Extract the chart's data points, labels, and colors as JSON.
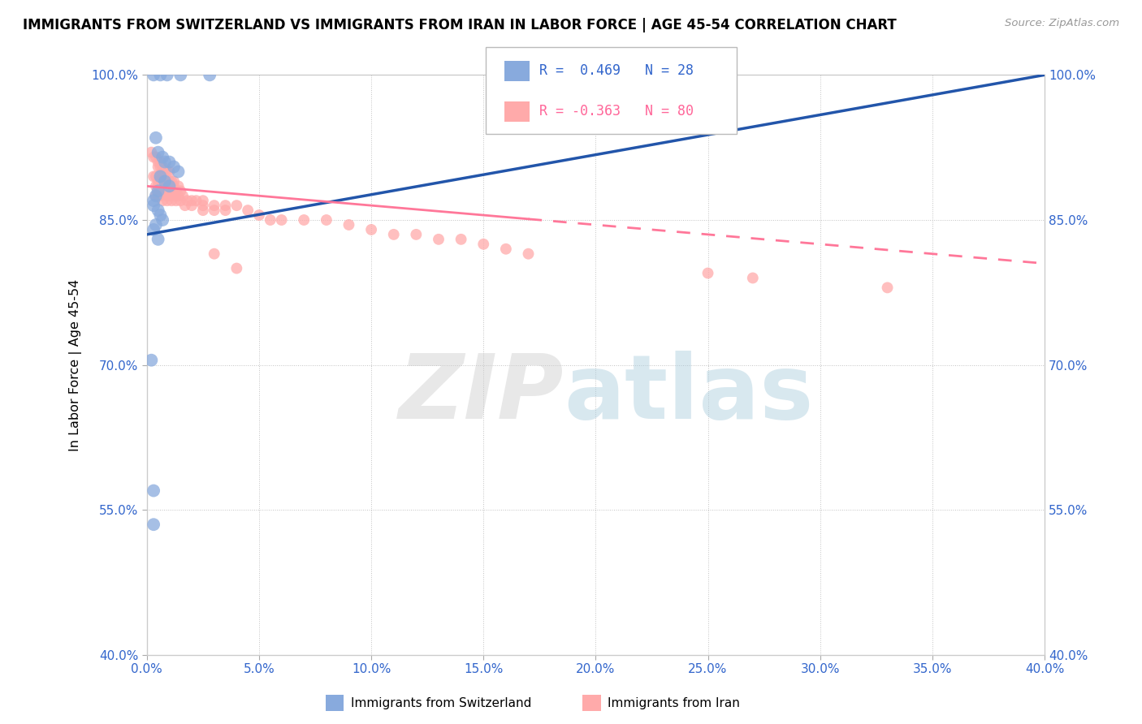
{
  "title": "IMMIGRANTS FROM SWITZERLAND VS IMMIGRANTS FROM IRAN IN LABOR FORCE | AGE 45-54 CORRELATION CHART",
  "source": "Source: ZipAtlas.com",
  "ylabel": "In Labor Force | Age 45-54",
  "legend_label1": "Immigrants from Switzerland",
  "legend_label2": "Immigrants from Iran",
  "blue_color": "#88AADD",
  "pink_color": "#FFAAAA",
  "blue_line_color": "#2255AA",
  "pink_line_color": "#FF7799",
  "xmin": 0.0,
  "xmax": 40.0,
  "ymin": 40.0,
  "ymax": 100.0,
  "yticks": [
    40.0,
    55.0,
    70.0,
    85.0,
    100.0
  ],
  "xticks": [
    0.0,
    5.0,
    10.0,
    15.0,
    20.0,
    25.0,
    30.0,
    35.0,
    40.0
  ],
  "sw_line_x0": 0.0,
  "sw_line_y0": 83.5,
  "sw_line_x1": 40.0,
  "sw_line_y1": 100.0,
  "ir_line_x0": 0.0,
  "ir_line_y0": 88.5,
  "ir_line_x1": 40.0,
  "ir_line_y1": 80.5,
  "ir_solid_end_x": 17.0,
  "switzerland_points": [
    [
      0.3,
      100.0
    ],
    [
      0.6,
      100.0
    ],
    [
      0.9,
      100.0
    ],
    [
      1.5,
      100.0
    ],
    [
      2.8,
      100.0
    ],
    [
      0.4,
      93.5
    ],
    [
      0.5,
      92.0
    ],
    [
      0.7,
      91.5
    ],
    [
      0.8,
      91.0
    ],
    [
      1.0,
      91.0
    ],
    [
      1.2,
      90.5
    ],
    [
      1.4,
      90.0
    ],
    [
      0.6,
      89.5
    ],
    [
      0.8,
      89.0
    ],
    [
      1.0,
      88.5
    ],
    [
      0.5,
      88.0
    ],
    [
      0.4,
      87.5
    ],
    [
      0.3,
      87.0
    ],
    [
      0.3,
      86.5
    ],
    [
      0.5,
      86.0
    ],
    [
      0.6,
      85.5
    ],
    [
      0.7,
      85.0
    ],
    [
      0.4,
      84.5
    ],
    [
      0.3,
      84.0
    ],
    [
      0.5,
      83.0
    ],
    [
      0.2,
      70.5
    ],
    [
      0.3,
      57.0
    ],
    [
      0.3,
      53.5
    ]
  ],
  "iran_points": [
    [
      0.2,
      92.0
    ],
    [
      0.3,
      91.5
    ],
    [
      0.4,
      91.5
    ],
    [
      0.5,
      91.0
    ],
    [
      0.5,
      90.5
    ],
    [
      0.6,
      91.0
    ],
    [
      0.6,
      90.5
    ],
    [
      0.7,
      90.5
    ],
    [
      0.7,
      90.0
    ],
    [
      0.8,
      90.0
    ],
    [
      0.9,
      90.0
    ],
    [
      1.0,
      90.0
    ],
    [
      0.3,
      89.5
    ],
    [
      0.4,
      89.5
    ],
    [
      0.5,
      89.0
    ],
    [
      0.6,
      89.0
    ],
    [
      0.8,
      89.0
    ],
    [
      0.9,
      89.0
    ],
    [
      1.0,
      89.0
    ],
    [
      1.1,
      89.0
    ],
    [
      1.2,
      89.0
    ],
    [
      0.4,
      88.5
    ],
    [
      0.5,
      88.5
    ],
    [
      0.7,
      88.5
    ],
    [
      0.8,
      88.5
    ],
    [
      1.0,
      88.5
    ],
    [
      1.2,
      88.5
    ],
    [
      1.4,
      88.5
    ],
    [
      0.6,
      88.0
    ],
    [
      0.7,
      88.0
    ],
    [
      0.8,
      88.0
    ],
    [
      1.1,
      88.0
    ],
    [
      1.3,
      88.0
    ],
    [
      1.5,
      88.0
    ],
    [
      0.4,
      87.5
    ],
    [
      0.5,
      87.5
    ],
    [
      0.6,
      87.5
    ],
    [
      0.9,
      87.5
    ],
    [
      1.0,
      87.5
    ],
    [
      1.2,
      87.5
    ],
    [
      1.4,
      87.5
    ],
    [
      1.6,
      87.5
    ],
    [
      0.7,
      87.0
    ],
    [
      0.9,
      87.0
    ],
    [
      1.1,
      87.0
    ],
    [
      1.3,
      87.0
    ],
    [
      1.5,
      87.0
    ],
    [
      1.8,
      87.0
    ],
    [
      2.0,
      87.0
    ],
    [
      2.2,
      87.0
    ],
    [
      2.5,
      87.0
    ],
    [
      1.7,
      86.5
    ],
    [
      2.0,
      86.5
    ],
    [
      2.5,
      86.5
    ],
    [
      3.0,
      86.5
    ],
    [
      3.5,
      86.5
    ],
    [
      4.0,
      86.5
    ],
    [
      2.5,
      86.0
    ],
    [
      3.0,
      86.0
    ],
    [
      3.5,
      86.0
    ],
    [
      4.5,
      86.0
    ],
    [
      5.0,
      85.5
    ],
    [
      5.5,
      85.0
    ],
    [
      6.0,
      85.0
    ],
    [
      7.0,
      85.0
    ],
    [
      8.0,
      85.0
    ],
    [
      9.0,
      84.5
    ],
    [
      10.0,
      84.0
    ],
    [
      11.0,
      83.5
    ],
    [
      12.0,
      83.5
    ],
    [
      13.0,
      83.0
    ],
    [
      14.0,
      83.0
    ],
    [
      15.0,
      82.5
    ],
    [
      3.0,
      81.5
    ],
    [
      4.0,
      80.0
    ],
    [
      16.0,
      82.0
    ],
    [
      17.0,
      81.5
    ],
    [
      25.0,
      79.5
    ],
    [
      27.0,
      79.0
    ],
    [
      33.0,
      78.0
    ]
  ]
}
